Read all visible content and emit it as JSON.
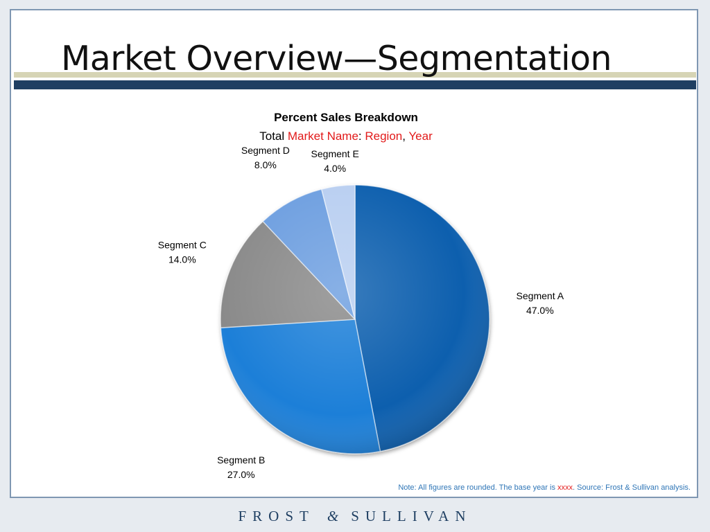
{
  "slide": {
    "title": "Market Overview—Segmentation"
  },
  "chart_data": {
    "type": "pie",
    "title": "Percent Sales Breakdown",
    "subtitle": {
      "prefix": "Total ",
      "market": "Market Name",
      "colon": ":  ",
      "region": "Region",
      "comma": ", ",
      "year": "Year"
    },
    "slices": [
      {
        "label": "Segment A",
        "value": 47.0,
        "value_label": "47.0%",
        "color": "#0e5fae"
      },
      {
        "label": "Segment B",
        "value": 27.0,
        "value_label": "27.0%",
        "color": "#1f7fd8"
      },
      {
        "label": "Segment C",
        "value": 14.0,
        "value_label": "14.0%",
        "color": "#8a8a8a"
      },
      {
        "label": "Segment D",
        "value": 8.0,
        "value_label": "8.0%",
        "color": "#6e9fe0"
      },
      {
        "label": "Segment E",
        "value": 4.0,
        "value_label": "4.0%",
        "color": "#b9cff1"
      }
    ],
    "start_angle_deg": 0,
    "direction": "clockwise"
  },
  "footnote": {
    "text_before": "Note: All figures are rounded. The base year is ",
    "highlight": "xxxx",
    "text_after": ". Source: Frost & Sullivan analysis."
  },
  "brand": {
    "left": "FROST",
    "amp": "&",
    "right": "SULLIVAN"
  },
  "colors": {
    "title_rule_dark": "#1f3f62",
    "title_rule_light": "#d6d4b5",
    "highlight_red": "#e21a1a",
    "footnote_blue": "#2e75b6"
  }
}
